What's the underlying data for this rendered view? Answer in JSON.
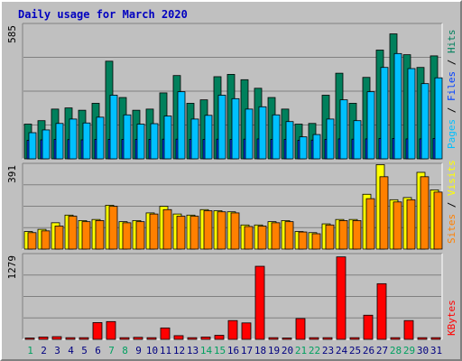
{
  "title": "Daily usage for March 2020",
  "colors": {
    "hits": "#00805c",
    "files": "#0040ff",
    "pages": "#00c0ff",
    "visits": "#ffff00",
    "sites": "#ff8000",
    "kbytes": "#ff0000",
    "weekend_day": "#00a060",
    "weekday": "#000080"
  },
  "legend": {
    "pages": "Pages",
    "files": "Files",
    "hits": "Hits",
    "sites": "Sites",
    "visits": "Visits",
    "kbytes": "KBytes",
    "sep": " / "
  },
  "chart_data": [
    {
      "type": "bar",
      "panel": "top",
      "ymax_label": "585",
      "ylim": [
        0,
        585
      ],
      "categories": [
        "1",
        "2",
        "3",
        "4",
        "5",
        "6",
        "7",
        "8",
        "9",
        "10",
        "11",
        "12",
        "13",
        "14",
        "15",
        "16",
        "17",
        "18",
        "19",
        "20",
        "21",
        "22",
        "23",
        "24",
        "25",
        "26",
        "27",
        "28",
        "29",
        "30",
        "31"
      ],
      "series": [
        {
          "name": "Hits",
          "values": [
            150,
            165,
            215,
            220,
            210,
            240,
            422,
            265,
            210,
            215,
            285,
            360,
            240,
            255,
            355,
            365,
            342,
            305,
            265,
            215,
            150,
            153,
            275,
            370,
            240,
            352,
            470,
            540,
            450,
            395,
            445
          ]
        },
        {
          "name": "Files",
          "values": [
            80,
            82,
            84,
            83,
            82,
            84,
            84,
            84,
            84,
            84,
            85,
            85,
            84,
            84,
            85,
            84,
            85,
            86,
            84,
            84,
            80,
            81,
            84,
            86,
            85,
            86,
            88,
            88,
            86,
            86,
            88
          ]
        },
        {
          "name": "Pages",
          "values": [
            113,
            125,
            153,
            172,
            155,
            180,
            275,
            190,
            150,
            152,
            185,
            290,
            172,
            188,
            275,
            260,
            215,
            225,
            190,
            161,
            95,
            105,
            172,
            255,
            165,
            290,
            395,
            455,
            390,
            325,
            350
          ]
        }
      ]
    },
    {
      "type": "bar",
      "panel": "middle",
      "ymax_label": "391",
      "ylim": [
        0,
        391
      ],
      "categories": [
        "1",
        "2",
        "3",
        "4",
        "5",
        "6",
        "7",
        "8",
        "9",
        "10",
        "11",
        "12",
        "13",
        "14",
        "15",
        "16",
        "17",
        "18",
        "19",
        "20",
        "21",
        "22",
        "23",
        "24",
        "25",
        "26",
        "27",
        "28",
        "29",
        "30",
        "31"
      ],
      "series": [
        {
          "name": "Visits",
          "values": [
            80,
            90,
            120,
            155,
            130,
            135,
            200,
            125,
            130,
            165,
            195,
            160,
            155,
            180,
            175,
            170,
            110,
            110,
            125,
            130,
            80,
            75,
            115,
            135,
            135,
            250,
            385,
            225,
            235,
            350,
            270
          ]
        },
        {
          "name": "Sites",
          "values": [
            75,
            83,
            105,
            150,
            125,
            130,
            195,
            120,
            125,
            160,
            180,
            150,
            150,
            175,
            170,
            165,
            103,
            105,
            120,
            125,
            78,
            70,
            110,
            130,
            130,
            230,
            330,
            215,
            225,
            330,
            260
          ]
        }
      ]
    },
    {
      "type": "bar",
      "panel": "bottom",
      "ymax_label": "1279",
      "ylim": [
        0,
        1279
      ],
      "categories": [
        "1",
        "2",
        "3",
        "4",
        "5",
        "6",
        "7",
        "8",
        "9",
        "10",
        "11",
        "12",
        "13",
        "14",
        "15",
        "16",
        "17",
        "18",
        "19",
        "20",
        "21",
        "22",
        "23",
        "24",
        "25",
        "26",
        "27",
        "28",
        "29",
        "30",
        "31"
      ],
      "series": [
        {
          "name": "KBytes",
          "values": [
            20,
            35,
            40,
            25,
            25,
            250,
            265,
            25,
            30,
            25,
            170,
            55,
            25,
            35,
            60,
            280,
            245,
            1090,
            25,
            20,
            310,
            25,
            25,
            1230,
            25,
            360,
            830,
            25,
            280,
            25,
            25
          ]
        }
      ]
    }
  ],
  "weekend_days": [
    "1",
    "7",
    "8",
    "14",
    "15",
    "21",
    "22",
    "28",
    "29"
  ]
}
